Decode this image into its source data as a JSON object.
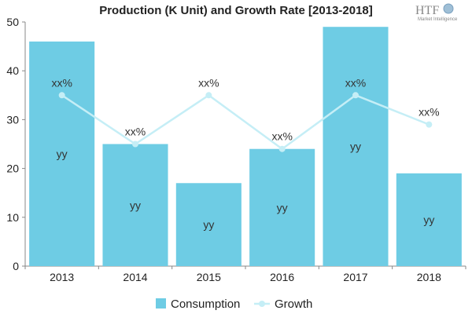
{
  "logo": {
    "mark": "HTF",
    "sub": "Market Intelligence"
  },
  "chart_data": {
    "type": "bar",
    "title": "Production (K Unit) and Growth Rate [2013-2018]",
    "categories": [
      "2013",
      "2014",
      "2015",
      "2016",
      "2017",
      "2018"
    ],
    "series": [
      {
        "name": "Consumption",
        "type": "bar",
        "values": [
          46,
          25,
          17,
          24,
          49,
          19
        ],
        "labels": [
          "yy",
          "yy",
          "yy",
          "yy",
          "yy",
          "yy"
        ],
        "color": "#6ECCE4"
      },
      {
        "name": "Growth",
        "type": "line",
        "values": [
          35,
          25,
          35,
          24,
          35,
          29
        ],
        "labels": [
          "xx%",
          "xx%",
          "xx%",
          "xx%",
          "xx%",
          "xx%"
        ],
        "color": "#C5EEF6"
      }
    ],
    "ylim": [
      0,
      50
    ],
    "yticks": [
      0,
      10,
      20,
      30,
      40,
      50
    ],
    "xlabel": "",
    "ylabel": "",
    "grid": false,
    "legend": "bottom-center"
  }
}
